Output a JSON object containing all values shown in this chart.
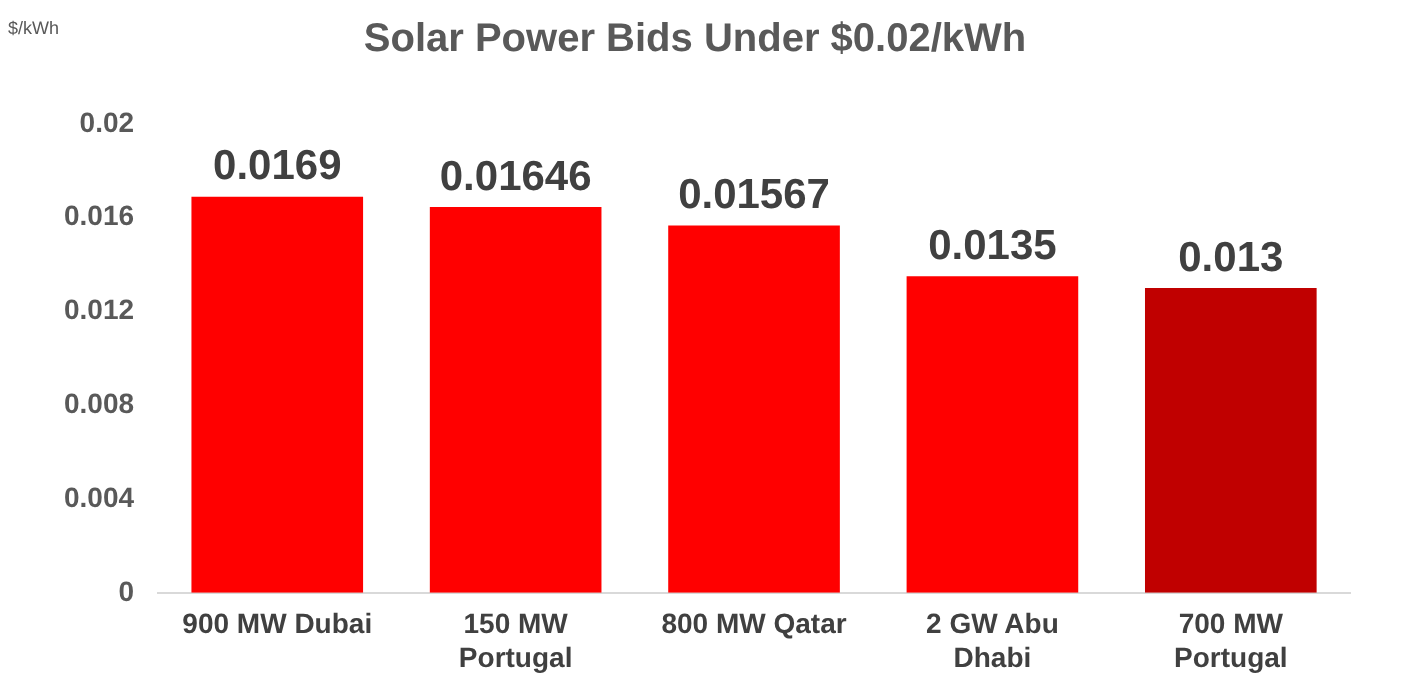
{
  "chart_data": {
    "type": "bar",
    "title": "Solar Power Bids Under $0.02/kWh",
    "ylabel": "$/kWh",
    "categories": [
      "900 MW Dubai",
      "150 MW Portugal",
      "800 MW Qatar",
      "2 GW Abu Dhabi",
      "700 MW Portugal"
    ],
    "values": [
      0.0169,
      0.01646,
      0.01567,
      0.0135,
      0.013
    ],
    "colors": [
      "#ff0000",
      "#ff0000",
      "#ff0000",
      "#ff0000",
      "#c00000"
    ],
    "ylim": [
      0,
      0.02
    ],
    "yticks": [
      0,
      0.004,
      0.008,
      0.012,
      0.016,
      0.02
    ],
    "grid": false,
    "data_labels": true,
    "legend": false
  }
}
